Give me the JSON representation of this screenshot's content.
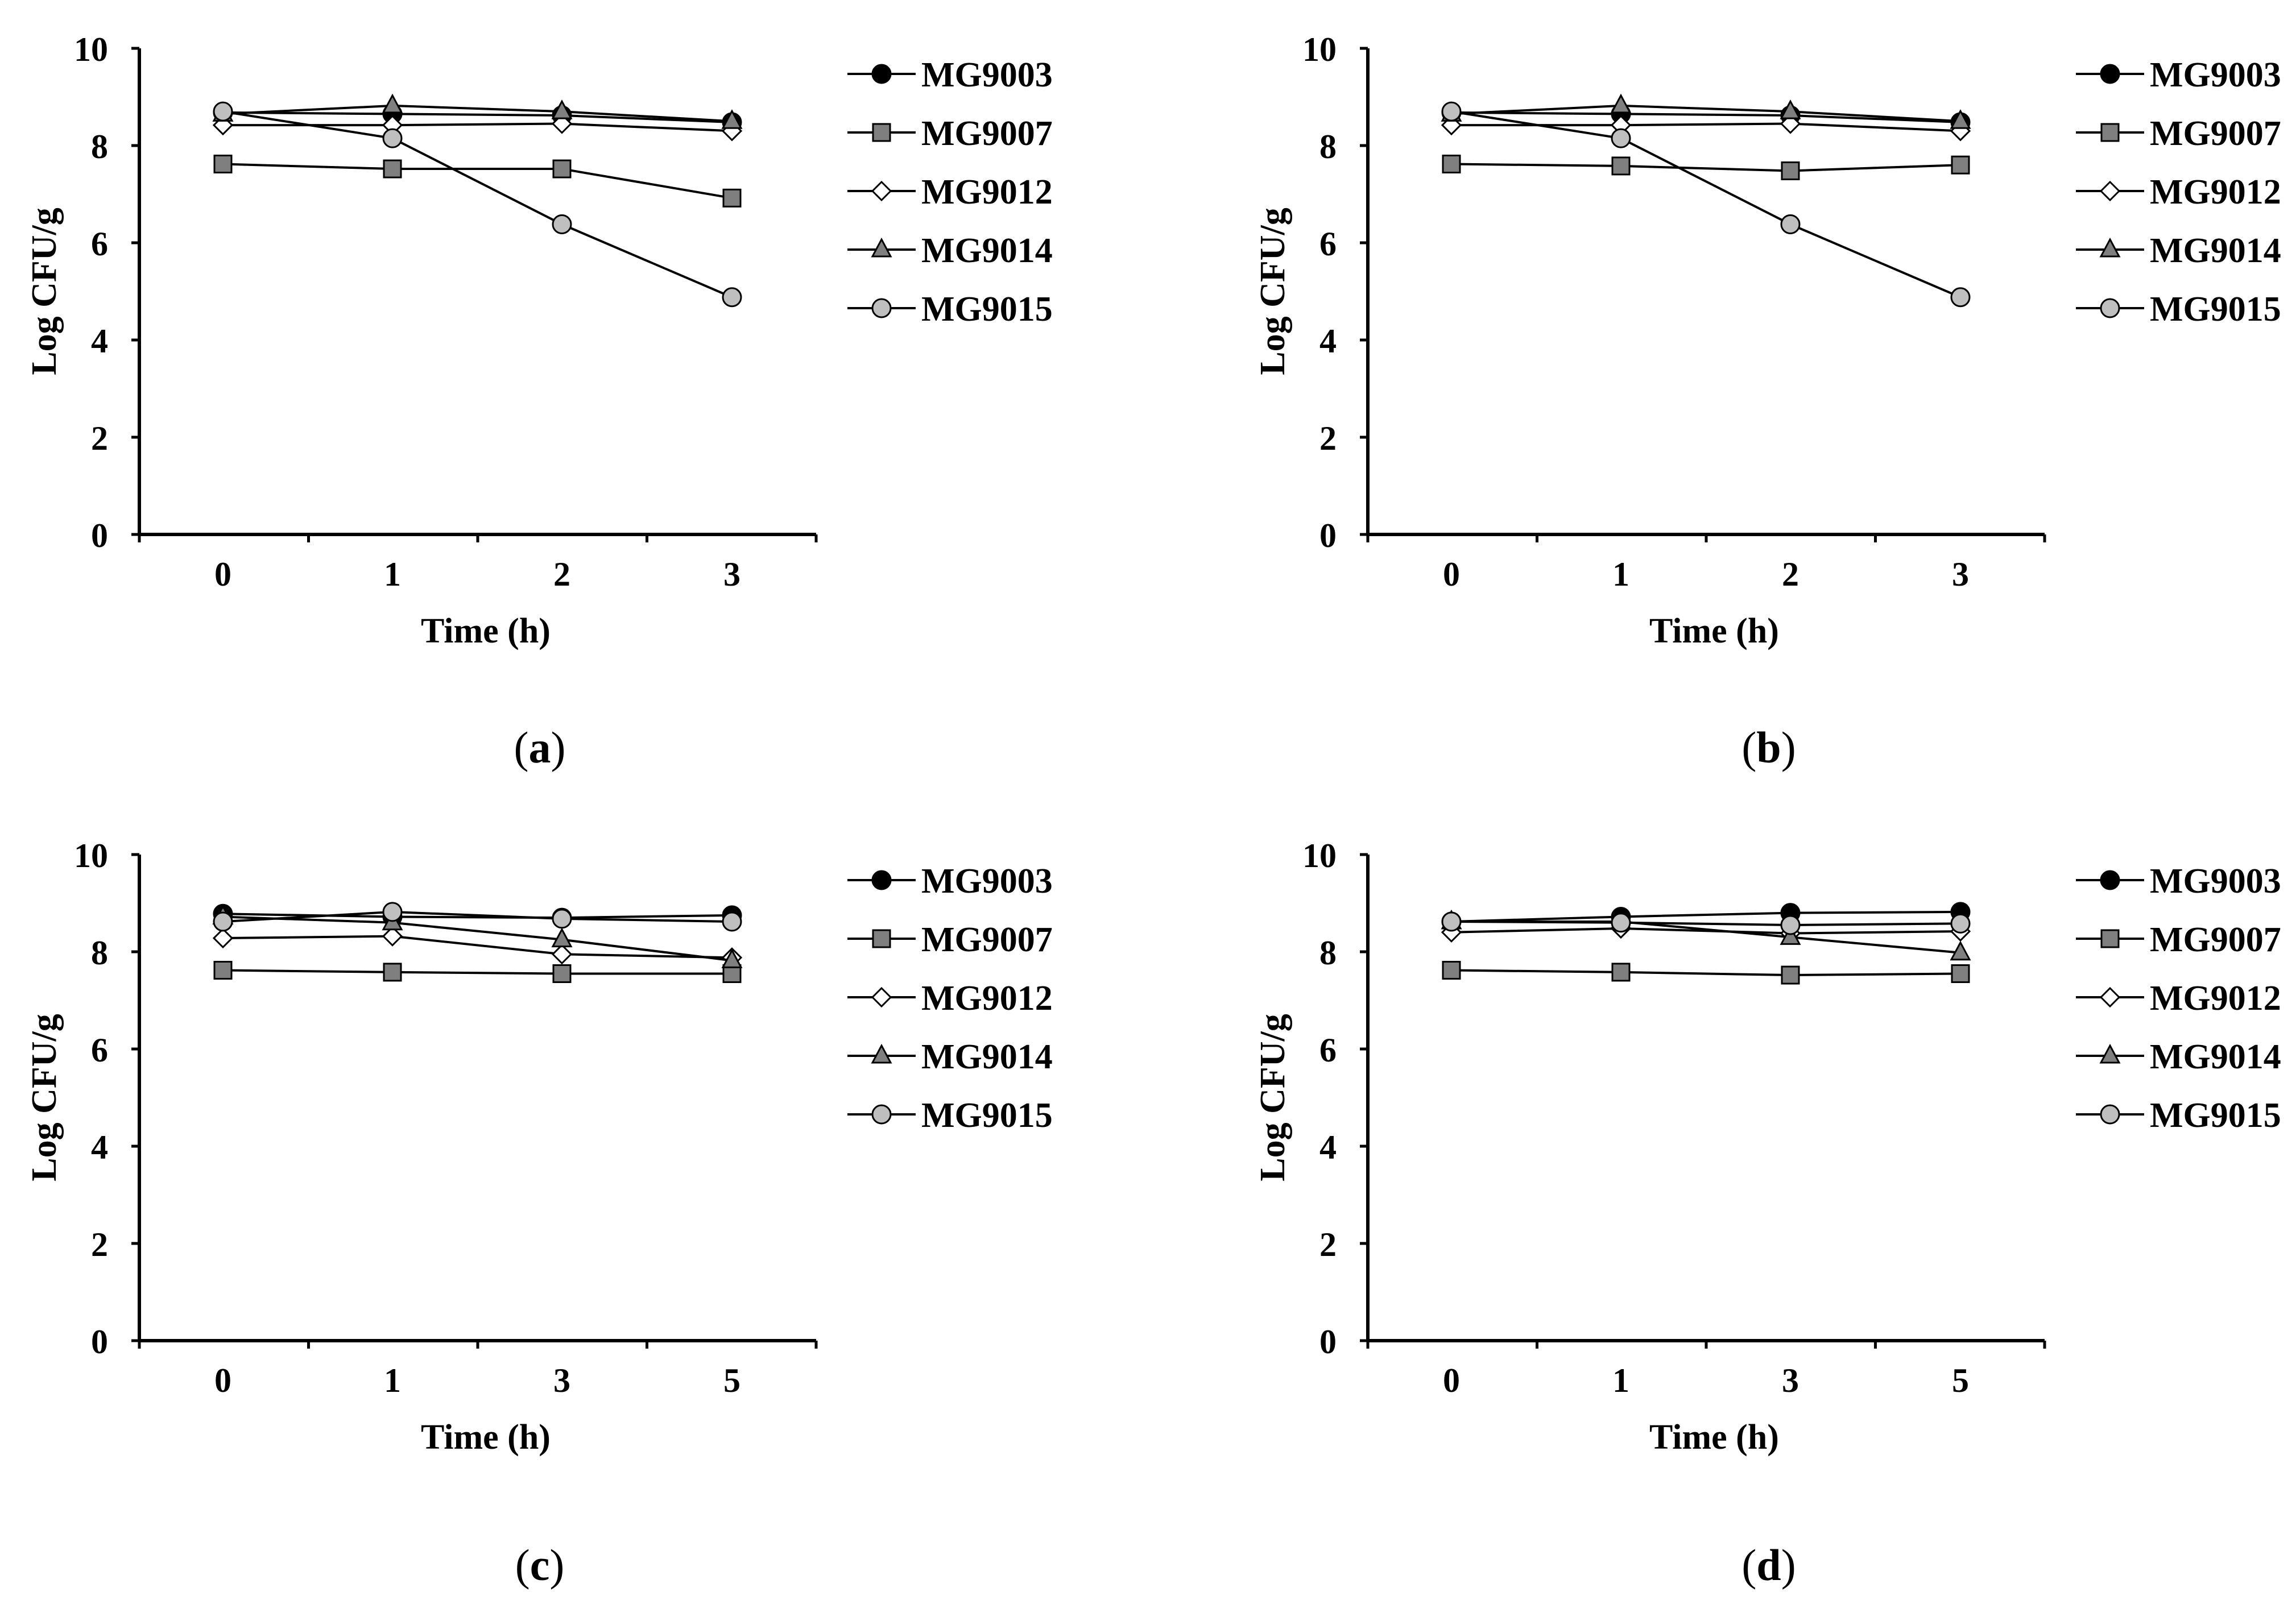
{
  "chart_data": [
    {
      "type": "line",
      "panel_label": "a",
      "xlabel": "Time (h)",
      "ylabel": "Log CFU/g",
      "categories": [
        "0",
        "1",
        "2",
        "3"
      ],
      "ylim": [
        0,
        10
      ],
      "yticks": [
        "0",
        "2",
        "4",
        "6",
        "8",
        "10"
      ],
      "legend_position": "right",
      "series": [
        {
          "name": "MG9003",
          "marker": "circle",
          "fill": "#000000",
          "values": [
            8.68,
            8.65,
            8.62,
            8.48
          ]
        },
        {
          "name": "MG9007",
          "marker": "square",
          "fill": "#7f7f7f",
          "values": [
            7.62,
            7.52,
            7.52,
            6.92
          ]
        },
        {
          "name": "MG9012",
          "marker": "diamond",
          "fill": "#ffffff",
          "values": [
            8.42,
            8.42,
            8.45,
            8.3
          ]
        },
        {
          "name": "MG9014",
          "marker": "triangle",
          "fill": "#7f7f7f",
          "values": [
            8.65,
            8.82,
            8.7,
            8.5
          ]
        },
        {
          "name": "MG9015",
          "marker": "circle",
          "fill": "#bfbfbf",
          "values": [
            8.7,
            8.15,
            6.38,
            4.88
          ]
        }
      ]
    },
    {
      "type": "line",
      "panel_label": "b",
      "xlabel": "Time (h)",
      "ylabel": "Log CFU/g",
      "categories": [
        "0",
        "1",
        "2",
        "3"
      ],
      "ylim": [
        0,
        10
      ],
      "yticks": [
        "0",
        "2",
        "4",
        "6",
        "8",
        "10"
      ],
      "legend_position": "right",
      "series": [
        {
          "name": "MG9003",
          "marker": "circle",
          "fill": "#000000",
          "values": [
            8.68,
            8.65,
            8.62,
            8.48
          ]
        },
        {
          "name": "MG9007",
          "marker": "square",
          "fill": "#7f7f7f",
          "values": [
            7.62,
            7.58,
            7.48,
            7.6
          ]
        },
        {
          "name": "MG9012",
          "marker": "diamond",
          "fill": "#ffffff",
          "values": [
            8.42,
            8.42,
            8.45,
            8.3
          ]
        },
        {
          "name": "MG9014",
          "marker": "triangle",
          "fill": "#7f7f7f",
          "values": [
            8.65,
            8.82,
            8.7,
            8.5
          ]
        },
        {
          "name": "MG9015",
          "marker": "circle",
          "fill": "#bfbfbf",
          "values": [
            8.7,
            8.15,
            6.38,
            4.88
          ]
        }
      ]
    },
    {
      "type": "line",
      "panel_label": "c",
      "xlabel": "Time (h)",
      "ylabel": "Log CFU/g",
      "categories": [
        "0",
        "1",
        "3",
        "5"
      ],
      "ylim": [
        0,
        10
      ],
      "yticks": [
        "0",
        "2",
        "4",
        "6",
        "8",
        "10"
      ],
      "legend_position": "right",
      "series": [
        {
          "name": "MG9003",
          "marker": "circle",
          "fill": "#000000",
          "values": [
            8.78,
            8.72,
            8.7,
            8.75
          ]
        },
        {
          "name": "MG9007",
          "marker": "square",
          "fill": "#7f7f7f",
          "values": [
            7.62,
            7.58,
            7.55,
            7.55
          ]
        },
        {
          "name": "MG9012",
          "marker": "diamond",
          "fill": "#ffffff",
          "values": [
            8.28,
            8.32,
            7.95,
            7.88
          ]
        },
        {
          "name": "MG9014",
          "marker": "triangle",
          "fill": "#7f7f7f",
          "values": [
            8.72,
            8.6,
            8.25,
            7.82
          ]
        },
        {
          "name": "MG9015",
          "marker": "circle",
          "fill": "#bfbfbf",
          "values": [
            8.62,
            8.82,
            8.68,
            8.62
          ]
        }
      ]
    },
    {
      "type": "line",
      "panel_label": "d",
      "xlabel": "Time (h)",
      "ylabel": "Log CFU/g",
      "categories": [
        "0",
        "1",
        "3",
        "5"
      ],
      "ylim": [
        0,
        10
      ],
      "yticks": [
        "0",
        "2",
        "4",
        "6",
        "8",
        "10"
      ],
      "legend_position": "right",
      "series": [
        {
          "name": "MG9003",
          "marker": "circle",
          "fill": "#000000",
          "values": [
            8.62,
            8.72,
            8.8,
            8.82
          ]
        },
        {
          "name": "MG9007",
          "marker": "square",
          "fill": "#7f7f7f",
          "values": [
            7.62,
            7.58,
            7.52,
            7.55
          ]
        },
        {
          "name": "MG9012",
          "marker": "diamond",
          "fill": "#ffffff",
          "values": [
            8.4,
            8.48,
            8.38,
            8.42
          ]
        },
        {
          "name": "MG9014",
          "marker": "triangle",
          "fill": "#7f7f7f",
          "values": [
            8.62,
            8.62,
            8.3,
            7.98
          ]
        },
        {
          "name": "MG9015",
          "marker": "circle",
          "fill": "#bfbfbf",
          "values": [
            8.62,
            8.6,
            8.55,
            8.58
          ]
        }
      ]
    }
  ],
  "colors": {
    "axis": "#000000",
    "line": "#000000"
  }
}
